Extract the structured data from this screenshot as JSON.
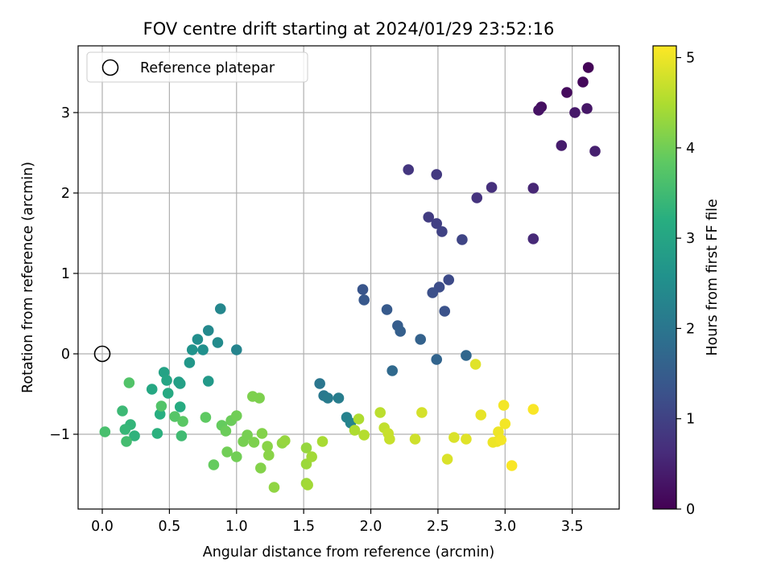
{
  "chart_data": {
    "type": "scatter",
    "title": "FOV centre drift starting at 2024/01/29 23:52:16",
    "xlabel": "Angular distance from reference (arcmin)",
    "ylabel": "Rotation from reference (arcmin)",
    "xlim": [
      -0.18,
      3.85
    ],
    "ylim": [
      -1.93,
      3.83
    ],
    "xticks": [
      0.0,
      0.5,
      1.0,
      1.5,
      2.0,
      2.5,
      3.0,
      3.5
    ],
    "xtick_labels": [
      "0.0",
      "0.5",
      "1.0",
      "1.5",
      "2.0",
      "2.5",
      "3.0",
      "3.5"
    ],
    "yticks": [
      -1,
      0,
      1,
      2,
      3
    ],
    "ytick_labels": [
      "−1",
      "0",
      "1",
      "2",
      "3"
    ],
    "grid": true,
    "legend": {
      "position": "top-left",
      "entries": [
        "Reference platepar"
      ]
    },
    "reference_point": {
      "x": 0.0,
      "y": 0.0,
      "label": "Reference platepar"
    },
    "colorbar": {
      "label": "Hours from first FF file",
      "colormap": "viridis",
      "range": [
        0,
        5.13
      ],
      "ticks": [
        0,
        1,
        2,
        3,
        4,
        5
      ],
      "tick_labels": [
        "0",
        "1",
        "2",
        "3",
        "4",
        "5"
      ]
    },
    "points": [
      {
        "x": 3.62,
        "y": 3.56,
        "c": 0.05
      },
      {
        "x": 3.58,
        "y": 3.38,
        "c": 0.1
      },
      {
        "x": 3.46,
        "y": 3.25,
        "c": 0.15
      },
      {
        "x": 3.27,
        "y": 3.07,
        "c": 0.2
      },
      {
        "x": 3.25,
        "y": 3.03,
        "c": 0.25
      },
      {
        "x": 3.61,
        "y": 3.05,
        "c": 0.3
      },
      {
        "x": 3.52,
        "y": 3.0,
        "c": 0.35
      },
      {
        "x": 3.42,
        "y": 2.59,
        "c": 0.4
      },
      {
        "x": 3.67,
        "y": 2.52,
        "c": 0.45
      },
      {
        "x": 3.21,
        "y": 2.06,
        "c": 0.55
      },
      {
        "x": 3.21,
        "y": 1.43,
        "c": 0.6
      },
      {
        "x": 2.9,
        "y": 2.07,
        "c": 0.7
      },
      {
        "x": 2.79,
        "y": 1.94,
        "c": 0.75
      },
      {
        "x": 2.28,
        "y": 2.29,
        "c": 0.8
      },
      {
        "x": 2.49,
        "y": 2.23,
        "c": 0.85
      },
      {
        "x": 2.43,
        "y": 1.7,
        "c": 0.9
      },
      {
        "x": 2.49,
        "y": 1.62,
        "c": 0.95
      },
      {
        "x": 2.53,
        "y": 1.52,
        "c": 1.0
      },
      {
        "x": 2.68,
        "y": 1.42,
        "c": 1.05
      },
      {
        "x": 2.58,
        "y": 0.92,
        "c": 1.15
      },
      {
        "x": 2.51,
        "y": 0.83,
        "c": 1.2
      },
      {
        "x": 2.46,
        "y": 0.76,
        "c": 1.25
      },
      {
        "x": 2.55,
        "y": 0.53,
        "c": 1.3
      },
      {
        "x": 1.94,
        "y": 0.8,
        "c": 1.35
      },
      {
        "x": 1.95,
        "y": 0.67,
        "c": 1.4
      },
      {
        "x": 2.12,
        "y": 0.55,
        "c": 1.45
      },
      {
        "x": 2.2,
        "y": 0.35,
        "c": 1.5
      },
      {
        "x": 2.22,
        "y": 0.28,
        "c": 1.55
      },
      {
        "x": 2.37,
        "y": 0.18,
        "c": 1.6
      },
      {
        "x": 2.49,
        "y": -0.07,
        "c": 1.65
      },
      {
        "x": 2.71,
        "y": -0.02,
        "c": 1.7
      },
      {
        "x": 2.16,
        "y": -0.21,
        "c": 1.75
      },
      {
        "x": 1.62,
        "y": -0.37,
        "c": 2.0
      },
      {
        "x": 1.65,
        "y": -0.52,
        "c": 2.05
      },
      {
        "x": 1.68,
        "y": -0.55,
        "c": 2.1
      },
      {
        "x": 1.76,
        "y": -0.55,
        "c": 2.15
      },
      {
        "x": 1.82,
        "y": -0.79,
        "c": 2.25
      },
      {
        "x": 1.85,
        "y": -0.86,
        "c": 2.3
      },
      {
        "x": 1.0,
        "y": 0.05,
        "c": 2.3
      },
      {
        "x": 0.88,
        "y": 0.56,
        "c": 2.35
      },
      {
        "x": 0.79,
        "y": 0.29,
        "c": 2.4
      },
      {
        "x": 0.86,
        "y": 0.14,
        "c": 2.45
      },
      {
        "x": 0.71,
        "y": 0.18,
        "c": 2.5
      },
      {
        "x": 0.75,
        "y": 0.05,
        "c": 2.55
      },
      {
        "x": 0.67,
        "y": 0.05,
        "c": 2.6
      },
      {
        "x": 0.65,
        "y": -0.11,
        "c": 2.7
      },
      {
        "x": 0.79,
        "y": -0.34,
        "c": 2.75
      },
      {
        "x": 0.57,
        "y": -0.35,
        "c": 2.85
      },
      {
        "x": 0.58,
        "y": -0.37,
        "c": 2.9
      },
      {
        "x": 0.46,
        "y": -0.23,
        "c": 2.95
      },
      {
        "x": 0.48,
        "y": -0.33,
        "c": 3.0
      },
      {
        "x": 0.37,
        "y": -0.44,
        "c": 3.05
      },
      {
        "x": 0.49,
        "y": -0.49,
        "c": 3.1
      },
      {
        "x": 0.58,
        "y": -0.66,
        "c": 3.15
      },
      {
        "x": 0.43,
        "y": -0.75,
        "c": 3.2
      },
      {
        "x": 0.41,
        "y": -0.99,
        "c": 3.25
      },
      {
        "x": 0.24,
        "y": -1.02,
        "c": 3.3
      },
      {
        "x": 0.21,
        "y": -0.88,
        "c": 3.35
      },
      {
        "x": 0.17,
        "y": -0.94,
        "c": 3.4
      },
      {
        "x": 0.15,
        "y": -0.71,
        "c": 3.45
      },
      {
        "x": 0.59,
        "y": -1.02,
        "c": 3.5
      },
      {
        "x": 0.18,
        "y": -1.09,
        "c": 3.55
      },
      {
        "x": 0.02,
        "y": -0.97,
        "c": 3.6
      },
      {
        "x": 0.2,
        "y": -0.36,
        "c": 3.7
      },
      {
        "x": 0.44,
        "y": -0.65,
        "c": 3.7
      },
      {
        "x": 0.54,
        "y": -0.78,
        "c": 3.75
      },
      {
        "x": 0.6,
        "y": -0.84,
        "c": 3.8
      },
      {
        "x": 0.77,
        "y": -0.79,
        "c": 3.85
      },
      {
        "x": 0.83,
        "y": -1.38,
        "c": 3.9
      },
      {
        "x": 0.89,
        "y": -0.89,
        "c": 3.9
      },
      {
        "x": 0.92,
        "y": -0.96,
        "c": 3.95
      },
      {
        "x": 0.96,
        "y": -0.83,
        "c": 3.95
      },
      {
        "x": 1.0,
        "y": -0.77,
        "c": 4.0
      },
      {
        "x": 0.93,
        "y": -1.22,
        "c": 4.0
      },
      {
        "x": 1.0,
        "y": -1.28,
        "c": 4.0
      },
      {
        "x": 1.05,
        "y": -1.09,
        "c": 4.05
      },
      {
        "x": 1.08,
        "y": -1.01,
        "c": 4.05
      },
      {
        "x": 1.13,
        "y": -1.1,
        "c": 4.1
      },
      {
        "x": 1.12,
        "y": -0.53,
        "c": 4.1
      },
      {
        "x": 1.17,
        "y": -0.55,
        "c": 4.1
      },
      {
        "x": 1.18,
        "y": -1.42,
        "c": 4.15
      },
      {
        "x": 1.19,
        "y": -0.99,
        "c": 4.15
      },
      {
        "x": 1.23,
        "y": -1.15,
        "c": 4.2
      },
      {
        "x": 1.24,
        "y": -1.26,
        "c": 4.2
      },
      {
        "x": 1.28,
        "y": -1.66,
        "c": 4.25
      },
      {
        "x": 1.34,
        "y": -1.11,
        "c": 4.25
      },
      {
        "x": 1.36,
        "y": -1.08,
        "c": 4.3
      },
      {
        "x": 1.52,
        "y": -1.17,
        "c": 4.3
      },
      {
        "x": 1.52,
        "y": -1.37,
        "c": 4.35
      },
      {
        "x": 1.52,
        "y": -1.61,
        "c": 4.35
      },
      {
        "x": 1.53,
        "y": -1.63,
        "c": 4.4
      },
      {
        "x": 1.56,
        "y": -1.28,
        "c": 4.4
      },
      {
        "x": 1.64,
        "y": -1.09,
        "c": 4.45
      },
      {
        "x": 1.88,
        "y": -0.95,
        "c": 4.5
      },
      {
        "x": 1.91,
        "y": -0.81,
        "c": 4.5
      },
      {
        "x": 1.95,
        "y": -1.01,
        "c": 4.55
      },
      {
        "x": 2.07,
        "y": -0.73,
        "c": 4.6
      },
      {
        "x": 2.1,
        "y": -0.92,
        "c": 4.65
      },
      {
        "x": 2.13,
        "y": -0.99,
        "c": 4.7
      },
      {
        "x": 2.14,
        "y": -1.06,
        "c": 4.7
      },
      {
        "x": 2.33,
        "y": -1.06,
        "c": 4.75
      },
      {
        "x": 2.38,
        "y": -0.73,
        "c": 4.8
      },
      {
        "x": 2.57,
        "y": -1.31,
        "c": 4.85
      },
      {
        "x": 2.62,
        "y": -1.04,
        "c": 4.85
      },
      {
        "x": 2.71,
        "y": -1.06,
        "c": 4.9
      },
      {
        "x": 2.78,
        "y": -0.13,
        "c": 4.9
      },
      {
        "x": 2.82,
        "y": -0.76,
        "c": 4.95
      },
      {
        "x": 2.91,
        "y": -1.1,
        "c": 5.0
      },
      {
        "x": 2.94,
        "y": -1.09,
        "c": 5.0
      },
      {
        "x": 2.95,
        "y": -0.97,
        "c": 5.0
      },
      {
        "x": 2.97,
        "y": -1.07,
        "c": 5.05
      },
      {
        "x": 2.99,
        "y": -0.64,
        "c": 5.05
      },
      {
        "x": 3.0,
        "y": -0.87,
        "c": 5.05
      },
      {
        "x": 3.05,
        "y": -1.39,
        "c": 5.1
      },
      {
        "x": 3.21,
        "y": -0.69,
        "c": 5.1
      }
    ]
  }
}
